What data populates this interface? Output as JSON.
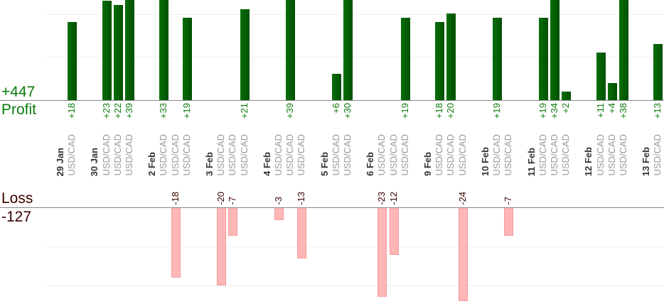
{
  "summary": {
    "profit_total": "+447",
    "profit_label": "Profit",
    "loss_label": "Loss",
    "loss_total": "-127"
  },
  "chart_data": {
    "type": "bar",
    "title": "",
    "profit_color": "#006400",
    "loss_color": "#ffb6b6",
    "groups": [
      {
        "date": "29 Jan",
        "trades": [
          {
            "pair": "USD/CAD",
            "pnl": 18
          }
        ]
      },
      {
        "date": "30 Jan",
        "trades": [
          {
            "pair": "USD/CAD",
            "pnl": 23
          },
          {
            "pair": "USD/CAD",
            "pnl": 22
          },
          {
            "pair": "USD/CAD",
            "pnl": 39
          }
        ]
      },
      {
        "date": "2 Feb",
        "trades": [
          {
            "pair": "USD/CAD",
            "pnl": 33
          },
          {
            "pair": "USD/CAD",
            "pnl": -18
          },
          {
            "pair": "USD/CAD",
            "pnl": 19
          }
        ]
      },
      {
        "date": "3 Feb",
        "trades": [
          {
            "pair": "USD/CAD",
            "pnl": -20
          },
          {
            "pair": "USD/CAD",
            "pnl": -7
          },
          {
            "pair": "USD/CAD",
            "pnl": 21
          }
        ]
      },
      {
        "date": "4 Feb",
        "trades": [
          {
            "pair": "USD/CAD",
            "pnl": -3
          },
          {
            "pair": "USD/CAD",
            "pnl": 39
          },
          {
            "pair": "USD/CAD",
            "pnl": -13
          }
        ]
      },
      {
        "date": "5 Feb",
        "trades": [
          {
            "pair": "USD/CAD",
            "pnl": 6
          },
          {
            "pair": "USD/CAD",
            "pnl": 30
          }
        ]
      },
      {
        "date": "6 Feb",
        "trades": [
          {
            "pair": "USD/CAD",
            "pnl": -23
          },
          {
            "pair": "USD/CAD",
            "pnl": -12
          },
          {
            "pair": "USD/CAD",
            "pnl": 19
          }
        ]
      },
      {
        "date": "9 Feb",
        "trades": [
          {
            "pair": "USD/CAD",
            "pnl": 18
          },
          {
            "pair": "USD/CAD",
            "pnl": 20
          },
          {
            "pair": "USD/CAD",
            "pnl": -24
          }
        ]
      },
      {
        "date": "10 Feb",
        "trades": [
          {
            "pair": "USD/CAD",
            "pnl": 19
          },
          {
            "pair": "USD/CAD",
            "pnl": -7
          }
        ]
      },
      {
        "date": "11 Feb",
        "trades": [
          {
            "pair": "USD/CAD",
            "pnl": 19
          },
          {
            "pair": "USD/CAD",
            "pnl": 34
          },
          {
            "pair": "USD/CAD",
            "pnl": 2
          }
        ]
      },
      {
        "date": "12 Feb",
        "trades": [
          {
            "pair": "USD/CAD",
            "pnl": 11
          },
          {
            "pair": "USD/CAD",
            "pnl": 4
          },
          {
            "pair": "USD/CAD",
            "pnl": 38
          }
        ]
      },
      {
        "date": "13 Feb",
        "trades": [
          {
            "pair": "USD/CAD",
            "pnl": 13
          }
        ]
      }
    ]
  }
}
